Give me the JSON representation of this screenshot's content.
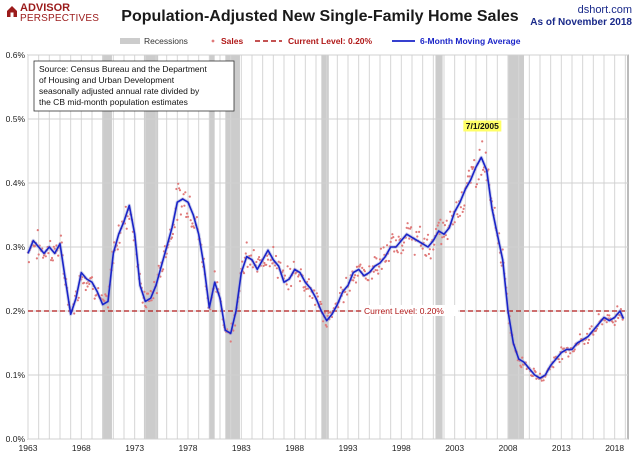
{
  "header": {
    "logo_top": "ADVISOR",
    "logo_bottom": "PERSPECTIVES",
    "site": "dshort.com",
    "as_of": "As of November 2018"
  },
  "source_note": [
    "Source: Census Bureau and the Department",
    "of Housing and Urban Development",
    "seasonally adjusted annual rate divided by",
    "the CB mid-month population estimates"
  ],
  "colors": {
    "sales": "#e07a7a",
    "moving_average": "#1a24c8",
    "current_level": "#b01818",
    "recession": "#cccccc",
    "peak_label_bg": "#ffff66"
  },
  "chart_data": {
    "type": "line",
    "title": "Population-Adjusted New Single-Family Home Sales",
    "legend": {
      "position": "top",
      "recessions": "Recessions",
      "sales": "Sales",
      "current": "Current Level: 0.20%",
      "ma": "6-Month Moving Average"
    },
    "grid": true,
    "xlim": [
      1963,
      2019.25
    ],
    "ylim": [
      0,
      0.6
    ],
    "y_ticks": [
      0,
      0.1,
      0.2,
      0.3,
      0.4,
      0.5,
      0.6
    ],
    "y_tick_labels": [
      "0.0%",
      "0.1%",
      "0.2%",
      "0.3%",
      "0.4%",
      "0.5%",
      "0.6%"
    ],
    "x_ticks": [
      1963,
      1968,
      1973,
      1978,
      1983,
      1988,
      1993,
      1998,
      2003,
      2008,
      2013,
      2018
    ],
    "current_level": 0.2,
    "current_label": "Current Level: 0.20%",
    "peak": {
      "x": 2005.5,
      "y": 0.443,
      "label": "7/1/2005"
    },
    "recessions": [
      [
        1969.95,
        1970.87
      ],
      [
        1973.87,
        1975.2
      ],
      [
        1980.0,
        1980.5
      ],
      [
        1981.5,
        1982.87
      ],
      [
        1990.5,
        1991.2
      ],
      [
        2001.2,
        2001.87
      ],
      [
        2007.95,
        2009.5
      ]
    ],
    "series": [
      {
        "name": "6-Month Moving Average",
        "x": [
          1963.0,
          1963.5,
          1964.0,
          1964.5,
          1965.0,
          1965.5,
          1966.0,
          1966.5,
          1967.0,
          1967.5,
          1968.0,
          1968.5,
          1969.0,
          1969.5,
          1970.0,
          1970.5,
          1971.0,
          1971.5,
          1972.0,
          1972.5,
          1973.0,
          1973.5,
          1974.0,
          1974.5,
          1975.0,
          1975.5,
          1976.0,
          1976.5,
          1977.0,
          1977.5,
          1978.0,
          1978.5,
          1979.0,
          1979.5,
          1980.0,
          1980.5,
          1981.0,
          1981.5,
          1982.0,
          1982.5,
          1983.0,
          1983.5,
          1984.0,
          1984.5,
          1985.0,
          1985.5,
          1986.0,
          1986.5,
          1987.0,
          1987.5,
          1988.0,
          1988.5,
          1989.0,
          1989.5,
          1990.0,
          1990.5,
          1991.0,
          1991.5,
          1992.0,
          1992.5,
          1993.0,
          1993.5,
          1994.0,
          1994.5,
          1995.0,
          1995.5,
          1996.0,
          1996.5,
          1997.0,
          1997.5,
          1998.0,
          1998.5,
          1999.0,
          1999.5,
          2000.0,
          2000.5,
          2001.0,
          2001.5,
          2002.0,
          2002.5,
          2003.0,
          2003.5,
          2004.0,
          2004.5,
          2005.0,
          2005.5,
          2006.0,
          2006.5,
          2007.0,
          2007.5,
          2008.0,
          2008.5,
          2009.0,
          2009.5,
          2010.0,
          2010.5,
          2011.0,
          2011.5,
          2012.0,
          2012.5,
          2013.0,
          2013.5,
          2014.0,
          2014.5,
          2015.0,
          2015.5,
          2016.0,
          2016.5,
          2017.0,
          2017.5,
          2018.0,
          2018.5,
          2018.83
        ],
        "values": [
          0.29,
          0.31,
          0.3,
          0.29,
          0.3,
          0.29,
          0.305,
          0.25,
          0.195,
          0.22,
          0.26,
          0.25,
          0.245,
          0.23,
          0.21,
          0.215,
          0.29,
          0.32,
          0.34,
          0.365,
          0.32,
          0.24,
          0.215,
          0.22,
          0.24,
          0.27,
          0.3,
          0.33,
          0.37,
          0.375,
          0.37,
          0.35,
          0.32,
          0.27,
          0.205,
          0.245,
          0.22,
          0.17,
          0.165,
          0.2,
          0.26,
          0.285,
          0.28,
          0.265,
          0.28,
          0.295,
          0.28,
          0.27,
          0.245,
          0.25,
          0.265,
          0.26,
          0.245,
          0.235,
          0.22,
          0.2,
          0.185,
          0.195,
          0.21,
          0.23,
          0.24,
          0.26,
          0.265,
          0.255,
          0.26,
          0.27,
          0.275,
          0.285,
          0.3,
          0.3,
          0.31,
          0.32,
          0.315,
          0.31,
          0.305,
          0.3,
          0.31,
          0.325,
          0.32,
          0.33,
          0.355,
          0.37,
          0.39,
          0.405,
          0.425,
          0.44,
          0.42,
          0.36,
          0.32,
          0.28,
          0.2,
          0.15,
          0.125,
          0.12,
          0.11,
          0.1,
          0.095,
          0.1,
          0.115,
          0.125,
          0.135,
          0.14,
          0.14,
          0.15,
          0.155,
          0.16,
          0.17,
          0.18,
          0.19,
          0.185,
          0.19,
          0.2,
          0.188
        ]
      }
    ]
  }
}
